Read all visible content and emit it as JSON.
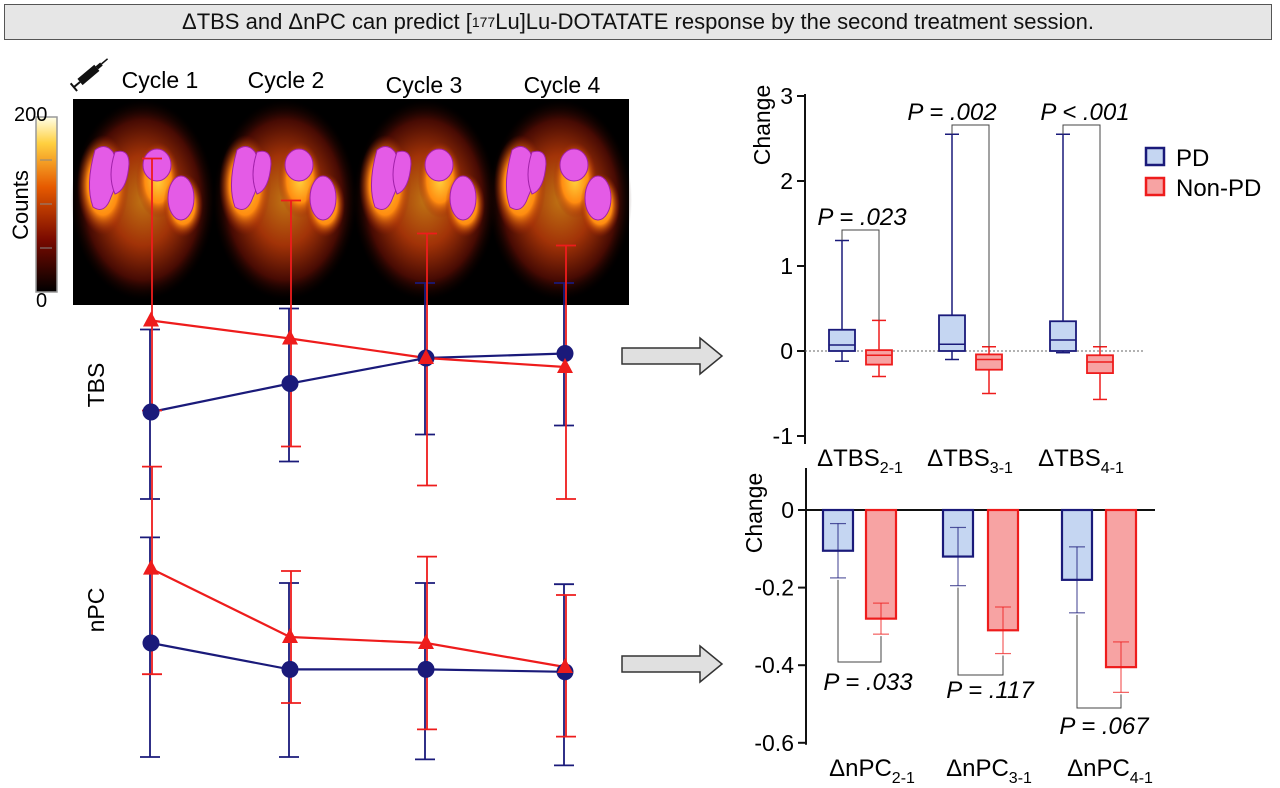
{
  "figure_title": {
    "part1": "ΔTBS and ΔnPC can predict [",
    "superscript": "177",
    "part2": "Lu]Lu-DOTATATE response by the second treatment session."
  },
  "image_panel": {
    "cycle_labels": [
      "Cycle 1",
      "Cycle 2",
      "Cycle 3",
      "Cycle 4"
    ],
    "colorbar_label": "Counts",
    "colorbar_max": "200",
    "colorbar_min": "0",
    "syringe_icon": "syringe-icon"
  },
  "colors": {
    "pd": "#1a1a7a",
    "non_pd": "#ee1c1c",
    "pd_fill": "#c5d6f2",
    "non_pd_fill": "#f7a3a3"
  },
  "legend": {
    "pd": "PD",
    "non_pd": "Non-PD"
  },
  "chart_data": [
    {
      "type": "line",
      "ylabel": "TBS",
      "x": [
        "Cycle 1",
        "Cycle 2",
        "Cycle 3",
        "Cycle 4"
      ],
      "series": [
        {
          "group": "PD",
          "marker": "circle",
          "values": [
            -0.36,
            -0.17,
            0.0,
            0.03
          ],
          "err_low": [
            0.58,
            0.52,
            0.51,
            0.48
          ],
          "err_high": [
            0.55,
            0.5,
            0.5,
            0.47
          ]
        },
        {
          "group": "Non-PD",
          "marker": "triangle",
          "values": [
            0.25,
            0.13,
            0.0,
            -0.06
          ],
          "err_low": [
            0.6,
            0.72,
            0.85,
            0.88
          ],
          "err_high": [
            1.08,
            0.92,
            0.83,
            0.81
          ]
        }
      ]
    },
    {
      "type": "line",
      "ylabel": "nPC",
      "x": [
        "Cycle 1",
        "Cycle 2",
        "Cycle 3",
        "Cycle 4"
      ],
      "series": [
        {
          "group": "PD",
          "marker": "circle",
          "values": [
            0.0,
            -0.22,
            -0.22,
            -0.24
          ],
          "err_low": [
            0.95,
            0.73,
            0.75,
            0.78
          ],
          "err_high": [
            0.88,
            0.72,
            0.72,
            0.73
          ]
        },
        {
          "group": "Non-PD",
          "marker": "triangle",
          "values": [
            0.62,
            0.05,
            0.0,
            -0.2
          ],
          "err_low": [
            0.88,
            0.55,
            0.72,
            0.58
          ],
          "err_high": [
            0.85,
            0.55,
            0.72,
            0.6
          ]
        }
      ]
    },
    {
      "type": "box",
      "ylabel": "Change",
      "ylim": [
        -1,
        3
      ],
      "yticks": [
        "-1",
        "0",
        "1",
        "2",
        "3"
      ],
      "categories": [
        {
          "main": "ΔTBS",
          "sub": "2-1"
        },
        {
          "main": "ΔTBS",
          "sub": "3-1"
        },
        {
          "main": "ΔTBS",
          "sub": "4-1"
        }
      ],
      "series": [
        {
          "group": "PD",
          "boxes": [
            {
              "min": -0.12,
              "q1": 0.0,
              "median": 0.07,
              "q3": 0.25,
              "max": 1.3
            },
            {
              "min": -0.1,
              "q1": 0.0,
              "median": 0.08,
              "q3": 0.42,
              "max": 2.55
            },
            {
              "min": -0.02,
              "q1": 0.0,
              "median": 0.13,
              "q3": 0.35,
              "max": 2.55
            }
          ]
        },
        {
          "group": "Non-PD",
          "boxes": [
            {
              "min": -0.3,
              "q1": -0.16,
              "median": -0.05,
              "q3": 0.01,
              "max": 0.36
            },
            {
              "min": -0.5,
              "q1": -0.22,
              "median": -0.1,
              "q3": -0.04,
              "max": 0.05
            },
            {
              "min": -0.57,
              "q1": -0.26,
              "median": -0.13,
              "q3": -0.05,
              "max": 0.05
            }
          ]
        }
      ],
      "p_values": [
        "P = .023",
        "P = .002",
        "P < .001"
      ]
    },
    {
      "type": "bar",
      "ylabel": "Change",
      "ylim": [
        -0.6,
        0.0
      ],
      "yticks": [
        "0",
        "-0.2",
        "-0.4",
        "-0.6"
      ],
      "categories": [
        {
          "main": "ΔnPC",
          "sub": "2-1"
        },
        {
          "main": "ΔnPC",
          "sub": "3-1"
        },
        {
          "main": "ΔnPC",
          "sub": "4-1"
        }
      ],
      "series": [
        {
          "group": "PD",
          "values": [
            -0.105,
            -0.12,
            -0.18
          ],
          "err": [
            0.07,
            0.075,
            0.085
          ]
        },
        {
          "group": "Non-PD",
          "values": [
            -0.28,
            -0.31,
            -0.405
          ],
          "err": [
            0.04,
            0.06,
            0.065
          ]
        }
      ],
      "p_values": [
        "P = .033",
        "P = .117",
        "P = .067"
      ]
    }
  ]
}
